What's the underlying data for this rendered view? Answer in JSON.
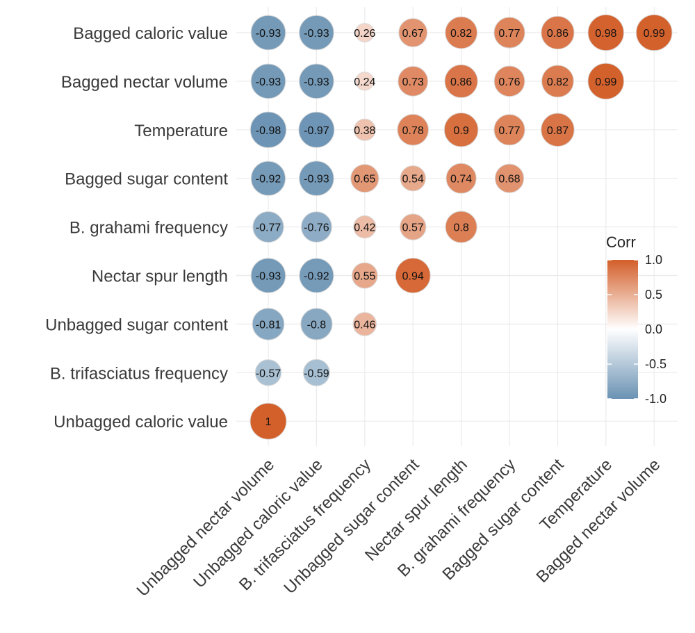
{
  "chart_data": {
    "type": "correlation-matrix",
    "title": "",
    "xlabel": "",
    "ylabel": "",
    "columns": [
      "Unbagged nectar volume",
      "Unbagged caloric value",
      "B. trifasciatus frequency",
      "Unbagged sugar content",
      "Nectar spur length",
      "B. grahami frequency",
      "Bagged sugar content",
      "Temperature",
      "Bagged nectar volume"
    ],
    "rows": [
      {
        "label": "Bagged caloric value",
        "values": [
          -0.93,
          -0.93,
          0.26,
          0.67,
          0.82,
          0.77,
          0.86,
          0.98,
          0.99
        ]
      },
      {
        "label": "Bagged nectar volume",
        "values": [
          -0.93,
          -0.93,
          0.24,
          0.73,
          0.86,
          0.76,
          0.82,
          0.99
        ]
      },
      {
        "label": "Temperature",
        "values": [
          -0.98,
          -0.97,
          0.38,
          0.78,
          0.9,
          0.77,
          0.87
        ]
      },
      {
        "label": "Bagged sugar content",
        "values": [
          -0.92,
          -0.93,
          0.65,
          0.54,
          0.74,
          0.68
        ]
      },
      {
        "label": "B. grahami frequency",
        "values": [
          -0.77,
          -0.76,
          0.42,
          0.57,
          0.8
        ]
      },
      {
        "label": "Nectar spur length",
        "values": [
          -0.93,
          -0.92,
          0.55,
          0.94
        ]
      },
      {
        "label": "Unbagged sugar content",
        "values": [
          -0.81,
          -0.8,
          0.46
        ]
      },
      {
        "label": "B. trifasciatus frequency",
        "values": [
          -0.57,
          -0.59
        ]
      },
      {
        "label": "Unbagged caloric value",
        "values": [
          1
        ]
      }
    ],
    "color_scale": {
      "low": "#6a92b3",
      "mid": "#ffffff",
      "high": "#d35f2a",
      "range": [
        -1,
        1
      ]
    },
    "legend": {
      "title": "Corr",
      "position": "right",
      "ticks": [
        "1.0",
        "0.5",
        "0.0",
        "-0.5",
        "-1.0"
      ]
    }
  }
}
